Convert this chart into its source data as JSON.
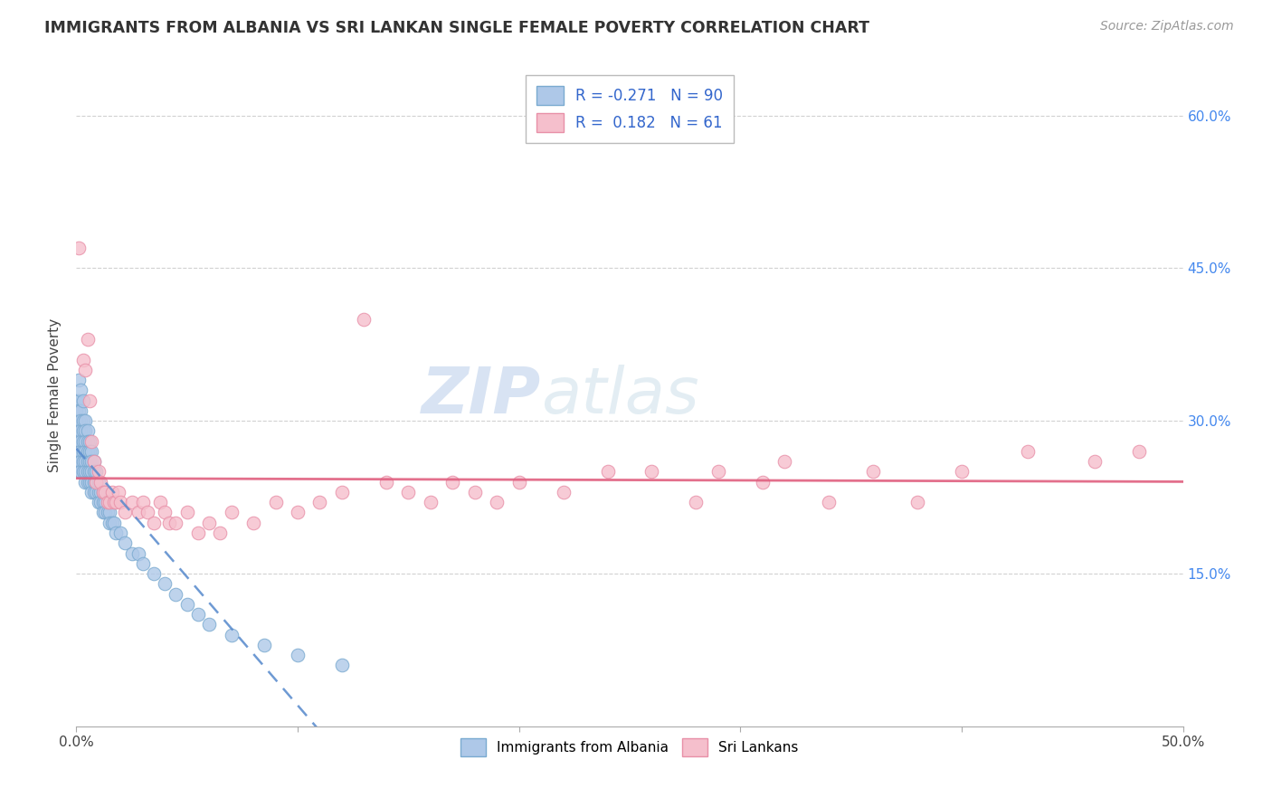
{
  "title": "IMMIGRANTS FROM ALBANIA VS SRI LANKAN SINGLE FEMALE POVERTY CORRELATION CHART",
  "source": "Source: ZipAtlas.com",
  "ylabel": "Single Female Poverty",
  "xlim": [
    0.0,
    0.5
  ],
  "ylim": [
    0.0,
    0.65
  ],
  "xticks": [
    0.0,
    0.1,
    0.2,
    0.3,
    0.4,
    0.5
  ],
  "xticklabels": [
    "0.0%",
    "",
    "",
    "",
    "",
    "50.0%"
  ],
  "yticks": [
    0.15,
    0.3,
    0.45,
    0.6
  ],
  "yticklabels": [
    "15.0%",
    "30.0%",
    "45.0%",
    "60.0%"
  ],
  "legend_labels": [
    "Immigrants from Albania",
    "Sri Lankans"
  ],
  "albania_R": "-0.271",
  "albania_N": "90",
  "srilanka_R": "0.182",
  "srilanka_N": "61",
  "albania_color": "#aec8e8",
  "albania_edge": "#7aaad0",
  "srilanka_color": "#f5bfcc",
  "srilanka_edge": "#e890a8",
  "albania_line_color": "#5588cc",
  "albania_line_dash_color": "#aaccee",
  "srilanka_line_color": "#e06080",
  "background_color": "#ffffff",
  "grid_color": "#cccccc",
  "watermark_zip": "ZIP",
  "watermark_atlas": "atlas",
  "albania_scatter": [
    [
      0.0,
      0.32
    ],
    [
      0.0,
      0.31
    ],
    [
      0.0,
      0.3
    ],
    [
      0.0,
      0.29
    ],
    [
      0.0,
      0.28
    ],
    [
      0.001,
      0.34
    ],
    [
      0.001,
      0.32
    ],
    [
      0.001,
      0.31
    ],
    [
      0.001,
      0.3
    ],
    [
      0.001,
      0.29
    ],
    [
      0.001,
      0.28
    ],
    [
      0.001,
      0.27
    ],
    [
      0.001,
      0.26
    ],
    [
      0.001,
      0.25
    ],
    [
      0.002,
      0.33
    ],
    [
      0.002,
      0.31
    ],
    [
      0.002,
      0.3
    ],
    [
      0.002,
      0.29
    ],
    [
      0.002,
      0.28
    ],
    [
      0.002,
      0.27
    ],
    [
      0.002,
      0.26
    ],
    [
      0.002,
      0.25
    ],
    [
      0.003,
      0.32
    ],
    [
      0.003,
      0.3
    ],
    [
      0.003,
      0.29
    ],
    [
      0.003,
      0.28
    ],
    [
      0.003,
      0.27
    ],
    [
      0.003,
      0.26
    ],
    [
      0.003,
      0.25
    ],
    [
      0.004,
      0.3
    ],
    [
      0.004,
      0.29
    ],
    [
      0.004,
      0.28
    ],
    [
      0.004,
      0.27
    ],
    [
      0.004,
      0.26
    ],
    [
      0.004,
      0.25
    ],
    [
      0.004,
      0.24
    ],
    [
      0.005,
      0.29
    ],
    [
      0.005,
      0.28
    ],
    [
      0.005,
      0.27
    ],
    [
      0.005,
      0.26
    ],
    [
      0.005,
      0.25
    ],
    [
      0.005,
      0.24
    ],
    [
      0.006,
      0.28
    ],
    [
      0.006,
      0.27
    ],
    [
      0.006,
      0.26
    ],
    [
      0.006,
      0.25
    ],
    [
      0.006,
      0.24
    ],
    [
      0.007,
      0.27
    ],
    [
      0.007,
      0.26
    ],
    [
      0.007,
      0.25
    ],
    [
      0.007,
      0.24
    ],
    [
      0.007,
      0.23
    ],
    [
      0.008,
      0.26
    ],
    [
      0.008,
      0.25
    ],
    [
      0.008,
      0.24
    ],
    [
      0.008,
      0.23
    ],
    [
      0.009,
      0.25
    ],
    [
      0.009,
      0.24
    ],
    [
      0.009,
      0.23
    ],
    [
      0.01,
      0.24
    ],
    [
      0.01,
      0.23
    ],
    [
      0.01,
      0.22
    ],
    [
      0.011,
      0.23
    ],
    [
      0.011,
      0.22
    ],
    [
      0.012,
      0.23
    ],
    [
      0.012,
      0.22
    ],
    [
      0.012,
      0.21
    ],
    [
      0.013,
      0.22
    ],
    [
      0.013,
      0.21
    ],
    [
      0.014,
      0.21
    ],
    [
      0.015,
      0.21
    ],
    [
      0.015,
      0.2
    ],
    [
      0.016,
      0.2
    ],
    [
      0.017,
      0.2
    ],
    [
      0.018,
      0.19
    ],
    [
      0.02,
      0.19
    ],
    [
      0.022,
      0.18
    ],
    [
      0.025,
      0.17
    ],
    [
      0.028,
      0.17
    ],
    [
      0.03,
      0.16
    ],
    [
      0.035,
      0.15
    ],
    [
      0.04,
      0.14
    ],
    [
      0.045,
      0.13
    ],
    [
      0.05,
      0.12
    ],
    [
      0.055,
      0.11
    ],
    [
      0.06,
      0.1
    ],
    [
      0.07,
      0.09
    ],
    [
      0.085,
      0.08
    ],
    [
      0.1,
      0.07
    ],
    [
      0.12,
      0.06
    ]
  ],
  "srilanka_scatter": [
    [
      0.001,
      0.47
    ],
    [
      0.003,
      0.36
    ],
    [
      0.004,
      0.35
    ],
    [
      0.005,
      0.38
    ],
    [
      0.006,
      0.32
    ],
    [
      0.007,
      0.28
    ],
    [
      0.008,
      0.26
    ],
    [
      0.009,
      0.24
    ],
    [
      0.01,
      0.25
    ],
    [
      0.011,
      0.24
    ],
    [
      0.012,
      0.23
    ],
    [
      0.013,
      0.23
    ],
    [
      0.014,
      0.22
    ],
    [
      0.015,
      0.22
    ],
    [
      0.016,
      0.23
    ],
    [
      0.017,
      0.22
    ],
    [
      0.018,
      0.22
    ],
    [
      0.019,
      0.23
    ],
    [
      0.02,
      0.22
    ],
    [
      0.022,
      0.21
    ],
    [
      0.025,
      0.22
    ],
    [
      0.028,
      0.21
    ],
    [
      0.03,
      0.22
    ],
    [
      0.032,
      0.21
    ],
    [
      0.035,
      0.2
    ],
    [
      0.038,
      0.22
    ],
    [
      0.04,
      0.21
    ],
    [
      0.042,
      0.2
    ],
    [
      0.045,
      0.2
    ],
    [
      0.05,
      0.21
    ],
    [
      0.055,
      0.19
    ],
    [
      0.06,
      0.2
    ],
    [
      0.065,
      0.19
    ],
    [
      0.07,
      0.21
    ],
    [
      0.08,
      0.2
    ],
    [
      0.09,
      0.22
    ],
    [
      0.1,
      0.21
    ],
    [
      0.11,
      0.22
    ],
    [
      0.12,
      0.23
    ],
    [
      0.13,
      0.4
    ],
    [
      0.14,
      0.24
    ],
    [
      0.15,
      0.23
    ],
    [
      0.16,
      0.22
    ],
    [
      0.17,
      0.24
    ],
    [
      0.18,
      0.23
    ],
    [
      0.19,
      0.22
    ],
    [
      0.2,
      0.24
    ],
    [
      0.22,
      0.23
    ],
    [
      0.24,
      0.25
    ],
    [
      0.26,
      0.25
    ],
    [
      0.28,
      0.22
    ],
    [
      0.29,
      0.25
    ],
    [
      0.31,
      0.24
    ],
    [
      0.32,
      0.26
    ],
    [
      0.34,
      0.22
    ],
    [
      0.36,
      0.25
    ],
    [
      0.38,
      0.22
    ],
    [
      0.4,
      0.25
    ],
    [
      0.43,
      0.27
    ],
    [
      0.46,
      0.26
    ],
    [
      0.48,
      0.27
    ]
  ]
}
